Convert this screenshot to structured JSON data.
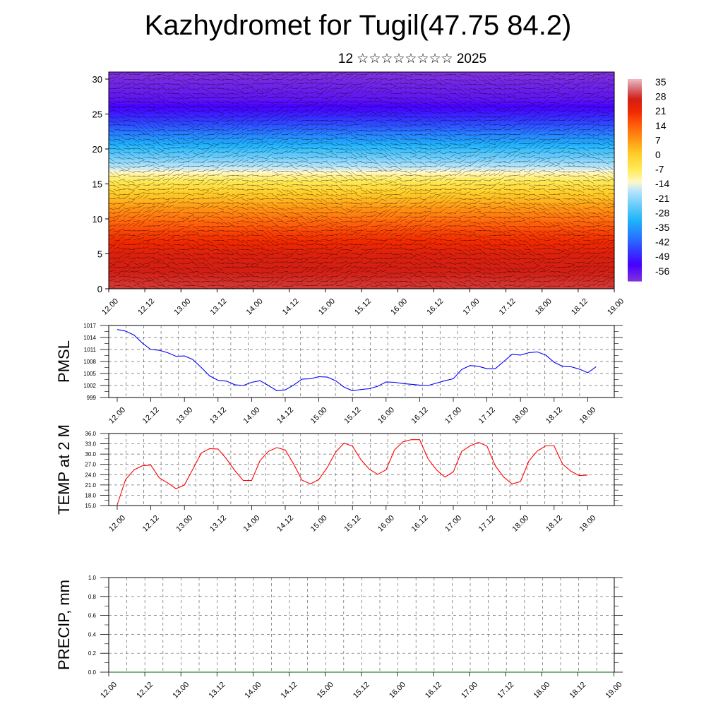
{
  "header": {
    "title": "Kazhydromet for Tugil(47.75 84.2)",
    "subtitle": "12 ☆☆☆☆☆☆☆☆ 2025"
  },
  "colors": {
    "pmsl_line": "#0000ff",
    "temp_line": "#ff0000",
    "precip_line": "#006400"
  },
  "chart_data": [
    {
      "type": "heatmap",
      "id": "vertical-section",
      "ylim": [
        0,
        30
      ],
      "yticks": [
        "0",
        "5",
        "10",
        "15",
        "20",
        "25",
        "30"
      ],
      "xticks": [
        "12.00",
        "12.12",
        "13.00",
        "13.12",
        "14.00",
        "14.12",
        "15.00",
        "15.12",
        "16.00",
        "16.12",
        "17.00",
        "17.12",
        "18.00",
        "18.12",
        "19.00"
      ],
      "colorbar_labels": [
        "35",
        "28",
        "21",
        "14",
        "7",
        "0",
        "-7",
        "-14",
        "-21",
        "-28",
        "-35",
        "-42",
        "-49",
        "-56"
      ],
      "level_temperature": [
        {
          "level": 0,
          "value": 32
        },
        {
          "level": 5,
          "value": 28
        },
        {
          "level": 8,
          "value": 21
        },
        {
          "level": 11,
          "value": 12
        },
        {
          "level": 14,
          "value": 2
        },
        {
          "level": 16,
          "value": -7
        },
        {
          "level": 18,
          "value": -18
        },
        {
          "level": 21,
          "value": -32
        },
        {
          "level": 24,
          "value": -45
        },
        {
          "level": 27,
          "value": -55
        },
        {
          "level": 31,
          "value": -60
        }
      ],
      "grid": false
    },
    {
      "type": "line",
      "id": "pmsl",
      "ylabel": "PMSL",
      "ylim": [
        999,
        1017
      ],
      "yticks": [
        "999",
        "1002",
        "1005",
        "1008",
        "1011",
        "1014",
        "1017"
      ],
      "xticks": [
        "12.00",
        "12.12",
        "13.00",
        "13.12",
        "14.00",
        "14.12",
        "15.00",
        "15.12",
        "16.00",
        "16.12",
        "17.00",
        "17.12",
        "18.00",
        "18.12",
        "19.00"
      ],
      "step_hours": 3,
      "series": [
        {
          "values": [
            1016,
            1015.6,
            1014.6,
            1012.6,
            1011,
            1010.8,
            1010.2,
            1009.3,
            1009.4,
            1008.5,
            1006.5,
            1004.4,
            1003.3,
            1003.1,
            1002.2,
            1002,
            1002.8,
            1003.2,
            1002,
            1000.7,
            1000.9,
            1002.1,
            1003.6,
            1003.7,
            1004.2,
            1004.1,
            1003.2,
            1001.6,
            1000.7,
            1001,
            1001.2,
            1001.8,
            1002.9,
            1002.8,
            1002.5,
            1002.3,
            1002.1,
            1002,
            1002.6,
            1003.2,
            1003.7,
            1006,
            1007,
            1006.8,
            1006.2,
            1006.2,
            1008,
            1009.8,
            1009.6,
            1010.2,
            1010.4,
            1009.6,
            1007.8,
            1006.8,
            1006.7,
            1006.1,
            1005.2,
            1006.7
          ]
        }
      ],
      "grid": true
    },
    {
      "type": "line",
      "id": "temp2m",
      "ylabel": "TEMP at 2 M",
      "ylim": [
        15,
        36
      ],
      "yticks": [
        "15.0",
        "18.0",
        "21.0",
        "24.0",
        "27.0",
        "30.0",
        "33.0",
        "36.0"
      ],
      "xticks": [
        "12.00",
        "12.12",
        "13.00",
        "13.12",
        "14.00",
        "14.12",
        "15.00",
        "15.12",
        "16.00",
        "16.12",
        "17.00",
        "17.12",
        "18.00",
        "18.12",
        "19.00"
      ],
      "step_hours": 3,
      "series": [
        {
          "values": [
            15.2,
            22.6,
            25.4,
            26.6,
            26.8,
            23.1,
            21.6,
            19.9,
            21,
            25.6,
            30.3,
            31.6,
            31.5,
            28.6,
            25.2,
            22.3,
            22.3,
            28.1,
            30.8,
            31.9,
            31.2,
            27.1,
            22.4,
            21.3,
            22.6,
            26.1,
            30.6,
            33.2,
            32.3,
            28.4,
            25.6,
            24.1,
            25.4,
            31.2,
            33.6,
            34.2,
            34.2,
            28.6,
            25.4,
            23.3,
            24.8,
            30.8,
            32.4,
            33.4,
            32.4,
            26.6,
            23.3,
            21.3,
            22,
            28,
            30.9,
            32.4,
            32.4,
            27.1,
            25,
            23.7,
            23.9
          ]
        }
      ],
      "grid": true
    },
    {
      "type": "line",
      "id": "precip",
      "ylabel": "PRECIP, mm",
      "ylim": [
        0,
        1
      ],
      "yticks": [
        "0.0",
        "0.2",
        "0.4",
        "0.6",
        "0.8",
        "1.0"
      ],
      "xticks": [
        "12.00",
        "12.12",
        "13.00",
        "13.12",
        "14.00",
        "14.12",
        "15.00",
        "15.12",
        "16.00",
        "16.12",
        "17.00",
        "17.12",
        "18.00",
        "18.12",
        "19.00"
      ],
      "step_hours": 3,
      "series": [
        {
          "values": [
            0,
            0,
            0,
            0,
            0,
            0,
            0,
            0,
            0,
            0,
            0,
            0,
            0,
            0,
            0,
            0,
            0,
            0,
            0,
            0,
            0,
            0,
            0,
            0,
            0,
            0,
            0,
            0,
            0,
            0,
            0,
            0,
            0,
            0,
            0,
            0,
            0,
            0,
            0,
            0,
            0,
            0,
            0,
            0,
            0,
            0,
            0,
            0,
            0,
            0,
            0,
            0,
            0,
            0,
            0,
            0,
            0
          ]
        }
      ],
      "grid": true
    }
  ]
}
